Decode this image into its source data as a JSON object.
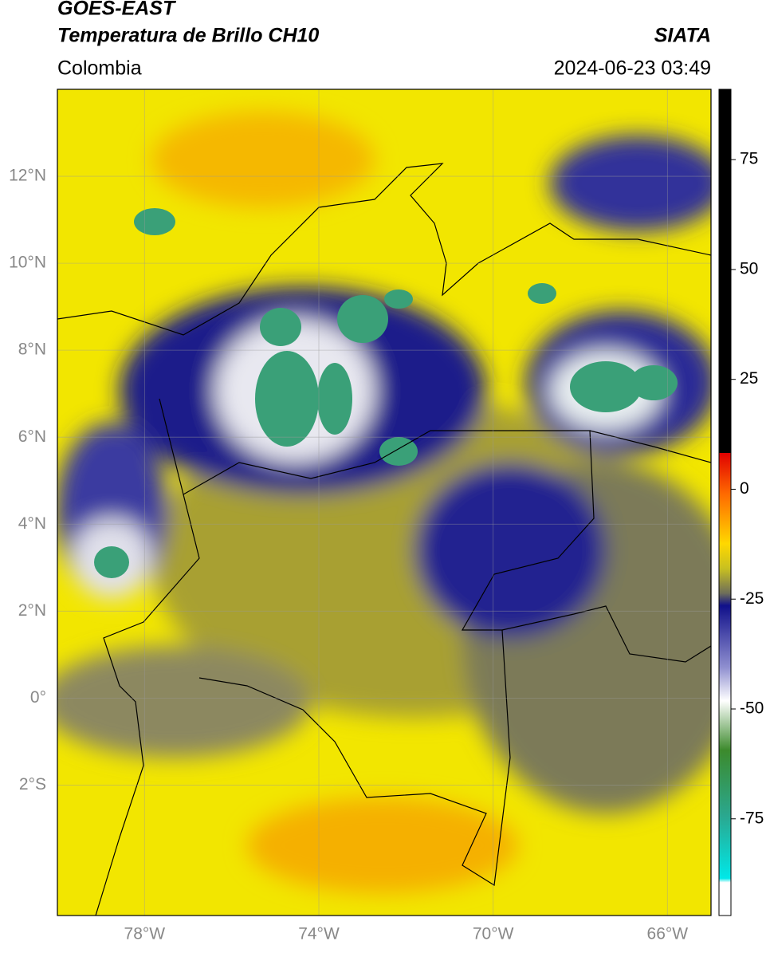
{
  "header": {
    "title": "GOES-EAST",
    "subtitle": "Temperatura de Brillo CH10",
    "region": "Colombia",
    "source": "SIATA",
    "datetime": "2024-06-23 03:49"
  },
  "map": {
    "lon_range": [
      -80,
      -65
    ],
    "lat_range": [
      -5,
      14
    ],
    "lon_ticks": [
      {
        "value": -78,
        "label": "78°W"
      },
      {
        "value": -74,
        "label": "74°W"
      },
      {
        "value": -70,
        "label": "70°W"
      },
      {
        "value": -66,
        "label": "66°W"
      }
    ],
    "lat_ticks": [
      {
        "value": 12,
        "label": "12°N"
      },
      {
        "value": 10,
        "label": "10°N"
      },
      {
        "value": 8,
        "label": "8°N"
      },
      {
        "value": 6,
        "label": "6°N"
      },
      {
        "value": 4,
        "label": "4°N"
      },
      {
        "value": 2,
        "label": "2°N"
      },
      {
        "value": 0,
        "label": "0°"
      },
      {
        "value": -2,
        "label": "2°S"
      }
    ]
  },
  "colorbar": {
    "range": [
      -97,
      91
    ],
    "ticks": [
      75,
      50,
      25,
      0,
      -25,
      -50,
      -75
    ]
  }
}
